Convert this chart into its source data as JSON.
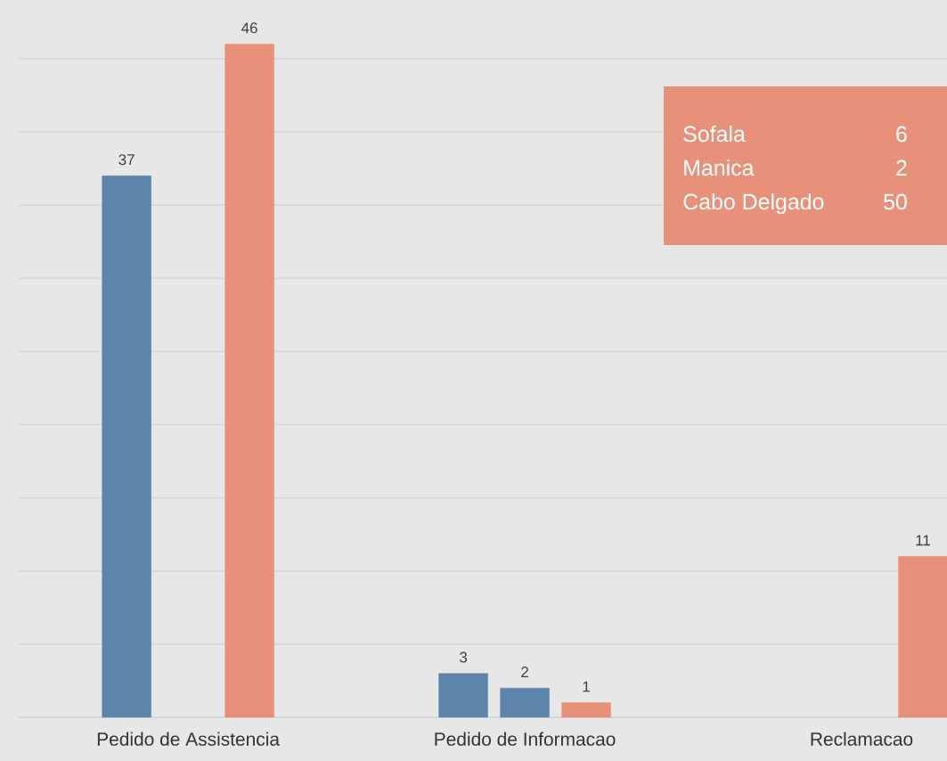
{
  "chart_data": {
    "type": "bar",
    "categories": [
      "Pedido de Assistencia",
      "Pedido de Informacao",
      "Reclamacao"
    ],
    "series": [
      {
        "color": "#5d84ab",
        "values": [
          37,
          3,
          null
        ]
      },
      {
        "color": "#5d84ab",
        "values": [
          null,
          2,
          null
        ]
      },
      {
        "color": "#e8917a",
        "values": [
          46,
          1,
          11
        ]
      }
    ],
    "yticks": [
      {
        "value": 0,
        "label": null
      },
      {
        "value": 5,
        "label": null
      },
      {
        "value": 10,
        "label": null
      },
      {
        "value": 15,
        "label": null
      },
      {
        "value": 20,
        "label": null
      },
      {
        "value": 25,
        "label": null
      },
      {
        "value": 30,
        "label": null
      },
      {
        "value": 35,
        "label": null
      },
      {
        "value": 40,
        "label": null
      },
      {
        "value": 45,
        "label": null
      }
    ],
    "grid": "y",
    "tick_labels": "x",
    "data_labels": true,
    "annotations": [
      "Sofala",
      "6",
      "Manica",
      "2",
      "Cabo Delgado",
      "50"
    ]
  }
}
